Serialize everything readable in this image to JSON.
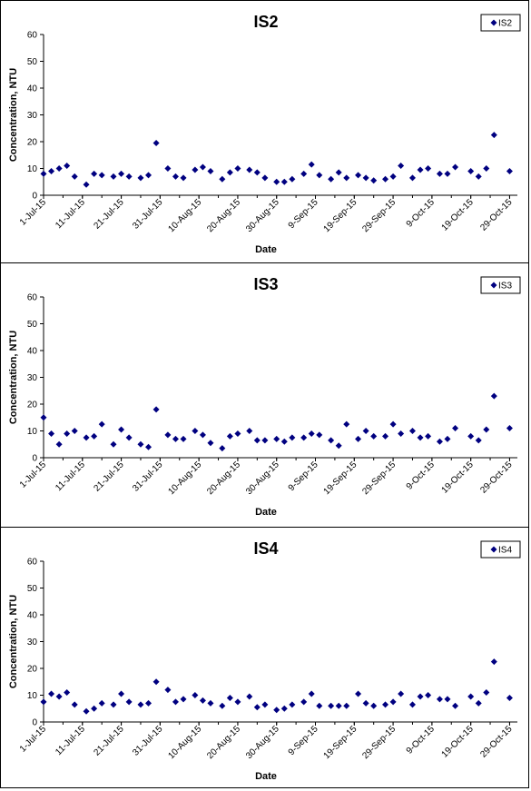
{
  "chart_data": [
    {
      "type": "scatter",
      "title": "IS2",
      "xlabel": "Date",
      "ylabel": "Concentration, NTU",
      "ylim": [
        0,
        60
      ],
      "yticks": [
        0,
        10,
        20,
        30,
        40,
        50,
        60
      ],
      "xlim": [
        "1-Jul-15",
        "31-Oct-15"
      ],
      "xtick_labels": [
        "1-Jul-15",
        "11-Jul-15",
        "21-Jul-15",
        "31-Jul-15",
        "10-Aug-15",
        "20-Aug-15",
        "30-Aug-15",
        "9-Sep-15",
        "19-Sep-15",
        "29-Sep-15",
        "9-Oct-15",
        "19-Oct-15",
        "29-Oct-15"
      ],
      "legend": "top-right",
      "series": [
        {
          "name": "IS2",
          "color": "#000080",
          "marker": "diamond",
          "points": [
            [
              "2015-07-01",
              8
            ],
            [
              "2015-07-03",
              9
            ],
            [
              "2015-07-05",
              10
            ],
            [
              "2015-07-07",
              11
            ],
            [
              "2015-07-09",
              7
            ],
            [
              "2015-07-12",
              4
            ],
            [
              "2015-07-14",
              8
            ],
            [
              "2015-07-16",
              7.5
            ],
            [
              "2015-07-19",
              7
            ],
            [
              "2015-07-21",
              8
            ],
            [
              "2015-07-23",
              7
            ],
            [
              "2015-07-26",
              6.5
            ],
            [
              "2015-07-28",
              7.5
            ],
            [
              "2015-07-30",
              19.5
            ],
            [
              "2015-08-02",
              10
            ],
            [
              "2015-08-04",
              7
            ],
            [
              "2015-08-06",
              6.5
            ],
            [
              "2015-08-09",
              9.5
            ],
            [
              "2015-08-11",
              10.5
            ],
            [
              "2015-08-13",
              9
            ],
            [
              "2015-08-16",
              6
            ],
            [
              "2015-08-18",
              8.5
            ],
            [
              "2015-08-20",
              10
            ],
            [
              "2015-08-23",
              9.5
            ],
            [
              "2015-08-25",
              8.5
            ],
            [
              "2015-08-27",
              6.5
            ],
            [
              "2015-08-30",
              5
            ],
            [
              "2015-09-01",
              5
            ],
            [
              "2015-09-03",
              6
            ],
            [
              "2015-09-06",
              8
            ],
            [
              "2015-09-08",
              11.5
            ],
            [
              "2015-09-10",
              7.5
            ],
            [
              "2015-09-13",
              6
            ],
            [
              "2015-09-15",
              8.5
            ],
            [
              "2015-09-17",
              6.5
            ],
            [
              "2015-09-20",
              7.5
            ],
            [
              "2015-09-22",
              6.5
            ],
            [
              "2015-09-24",
              5.5
            ],
            [
              "2015-09-27",
              6
            ],
            [
              "2015-09-29",
              7
            ],
            [
              "2015-10-01",
              11
            ],
            [
              "2015-10-04",
              6.5
            ],
            [
              "2015-10-06",
              9.5
            ],
            [
              "2015-10-08",
              10
            ],
            [
              "2015-10-11",
              8
            ],
            [
              "2015-10-13",
              8
            ],
            [
              "2015-10-15",
              10.5
            ],
            [
              "2015-10-19",
              9
            ],
            [
              "2015-10-21",
              7
            ],
            [
              "2015-10-23",
              10
            ],
            [
              "2015-10-25",
              22.5
            ],
            [
              "2015-10-29",
              9
            ]
          ]
        }
      ]
    },
    {
      "type": "scatter",
      "title": "IS3",
      "xlabel": "Date",
      "ylabel": "Concentration, NTU",
      "ylim": [
        0,
        60
      ],
      "yticks": [
        0,
        10,
        20,
        30,
        40,
        50,
        60
      ],
      "xlim": [
        "1-Jul-15",
        "31-Oct-15"
      ],
      "xtick_labels": [
        "1-Jul-15",
        "11-Jul-15",
        "21-Jul-15",
        "31-Jul-15",
        "10-Aug-15",
        "20-Aug-15",
        "30-Aug-15",
        "9-Sep-15",
        "19-Sep-15",
        "29-Sep-15",
        "9-Oct-15",
        "19-Oct-15",
        "29-Oct-15"
      ],
      "legend": "top-right",
      "series": [
        {
          "name": "IS3",
          "color": "#000080",
          "marker": "diamond",
          "points": [
            [
              "2015-07-01",
              15
            ],
            [
              "2015-07-03",
              9
            ],
            [
              "2015-07-05",
              5
            ],
            [
              "2015-07-07",
              9
            ],
            [
              "2015-07-09",
              10
            ],
            [
              "2015-07-12",
              7.5
            ],
            [
              "2015-07-14",
              8
            ],
            [
              "2015-07-16",
              12.5
            ],
            [
              "2015-07-19",
              5
            ],
            [
              "2015-07-21",
              10.5
            ],
            [
              "2015-07-23",
              7.5
            ],
            [
              "2015-07-26",
              5
            ],
            [
              "2015-07-28",
              4
            ],
            [
              "2015-07-30",
              18
            ],
            [
              "2015-08-02",
              8.5
            ],
            [
              "2015-08-04",
              7
            ],
            [
              "2015-08-06",
              7
            ],
            [
              "2015-08-09",
              10
            ],
            [
              "2015-08-11",
              8.5
            ],
            [
              "2015-08-13",
              5.5
            ],
            [
              "2015-08-16",
              3.5
            ],
            [
              "2015-08-18",
              8
            ],
            [
              "2015-08-20",
              9
            ],
            [
              "2015-08-23",
              10
            ],
            [
              "2015-08-25",
              6.5
            ],
            [
              "2015-08-27",
              6.5
            ],
            [
              "2015-08-30",
              7
            ],
            [
              "2015-09-01",
              6
            ],
            [
              "2015-09-03",
              7.5
            ],
            [
              "2015-09-06",
              7.5
            ],
            [
              "2015-09-08",
              9
            ],
            [
              "2015-09-10",
              8.5
            ],
            [
              "2015-09-13",
              6.5
            ],
            [
              "2015-09-15",
              4.5
            ],
            [
              "2015-09-17",
              12.5
            ],
            [
              "2015-09-20",
              7
            ],
            [
              "2015-09-22",
              10
            ],
            [
              "2015-09-24",
              8
            ],
            [
              "2015-09-27",
              8
            ],
            [
              "2015-09-29",
              12.5
            ],
            [
              "2015-10-01",
              9
            ],
            [
              "2015-10-04",
              10
            ],
            [
              "2015-10-06",
              7.5
            ],
            [
              "2015-10-08",
              8
            ],
            [
              "2015-10-11",
              6
            ],
            [
              "2015-10-13",
              7
            ],
            [
              "2015-10-15",
              11
            ],
            [
              "2015-10-19",
              8
            ],
            [
              "2015-10-21",
              6.5
            ],
            [
              "2015-10-23",
              10.5
            ],
            [
              "2015-10-25",
              23
            ],
            [
              "2015-10-29",
              11
            ]
          ]
        }
      ]
    },
    {
      "type": "scatter",
      "title": "IS4",
      "xlabel": "Date",
      "ylabel": "Concentration, NTU",
      "ylim": [
        0,
        60
      ],
      "yticks": [
        0,
        10,
        20,
        30,
        40,
        50,
        60
      ],
      "xlim": [
        "1-Jul-15",
        "31-Oct-15"
      ],
      "xtick_labels": [
        "1-Jul-15",
        "11-Jul-15",
        "21-Jul-15",
        "31-Jul-15",
        "10-Aug-15",
        "20-Aug-15",
        "30-Aug-15",
        "9-Sep-15",
        "19-Sep-15",
        "29-Sep-15",
        "9-Oct-15",
        "19-Oct-15",
        "29-Oct-15"
      ],
      "legend": "top-right",
      "series": [
        {
          "name": "IS4",
          "color": "#000080",
          "marker": "diamond",
          "points": [
            [
              "2015-07-01",
              7.5
            ],
            [
              "2015-07-03",
              10.5
            ],
            [
              "2015-07-05",
              9.5
            ],
            [
              "2015-07-07",
              11
            ],
            [
              "2015-07-09",
              6.5
            ],
            [
              "2015-07-12",
              4
            ],
            [
              "2015-07-14",
              5
            ],
            [
              "2015-07-16",
              7
            ],
            [
              "2015-07-19",
              6.5
            ],
            [
              "2015-07-21",
              10.5
            ],
            [
              "2015-07-23",
              7.5
            ],
            [
              "2015-07-26",
              6.5
            ],
            [
              "2015-07-28",
              7
            ],
            [
              "2015-07-30",
              15
            ],
            [
              "2015-08-02",
              12
            ],
            [
              "2015-08-04",
              7.5
            ],
            [
              "2015-08-06",
              8.5
            ],
            [
              "2015-08-09",
              10
            ],
            [
              "2015-08-11",
              8
            ],
            [
              "2015-08-13",
              7
            ],
            [
              "2015-08-16",
              6
            ],
            [
              "2015-08-18",
              9
            ],
            [
              "2015-08-20",
              7.5
            ],
            [
              "2015-08-23",
              9.5
            ],
            [
              "2015-08-25",
              5.5
            ],
            [
              "2015-08-27",
              6.5
            ],
            [
              "2015-08-30",
              4.5
            ],
            [
              "2015-09-01",
              5
            ],
            [
              "2015-09-03",
              6.5
            ],
            [
              "2015-09-06",
              7.5
            ],
            [
              "2015-09-08",
              10.5
            ],
            [
              "2015-09-10",
              6
            ],
            [
              "2015-09-13",
              6
            ],
            [
              "2015-09-15",
              6
            ],
            [
              "2015-09-17",
              6
            ],
            [
              "2015-09-20",
              10.5
            ],
            [
              "2015-09-22",
              7
            ],
            [
              "2015-09-24",
              6
            ],
            [
              "2015-09-27",
              6.5
            ],
            [
              "2015-09-29",
              7.5
            ],
            [
              "2015-10-01",
              10.5
            ],
            [
              "2015-10-04",
              6.5
            ],
            [
              "2015-10-06",
              9.5
            ],
            [
              "2015-10-08",
              10
            ],
            [
              "2015-10-11",
              8.5
            ],
            [
              "2015-10-13",
              8.5
            ],
            [
              "2015-10-15",
              6
            ],
            [
              "2015-10-19",
              9.5
            ],
            [
              "2015-10-21",
              7
            ],
            [
              "2015-10-23",
              11
            ],
            [
              "2015-10-25",
              22.5
            ],
            [
              "2015-10-29",
              9
            ]
          ]
        }
      ]
    }
  ]
}
